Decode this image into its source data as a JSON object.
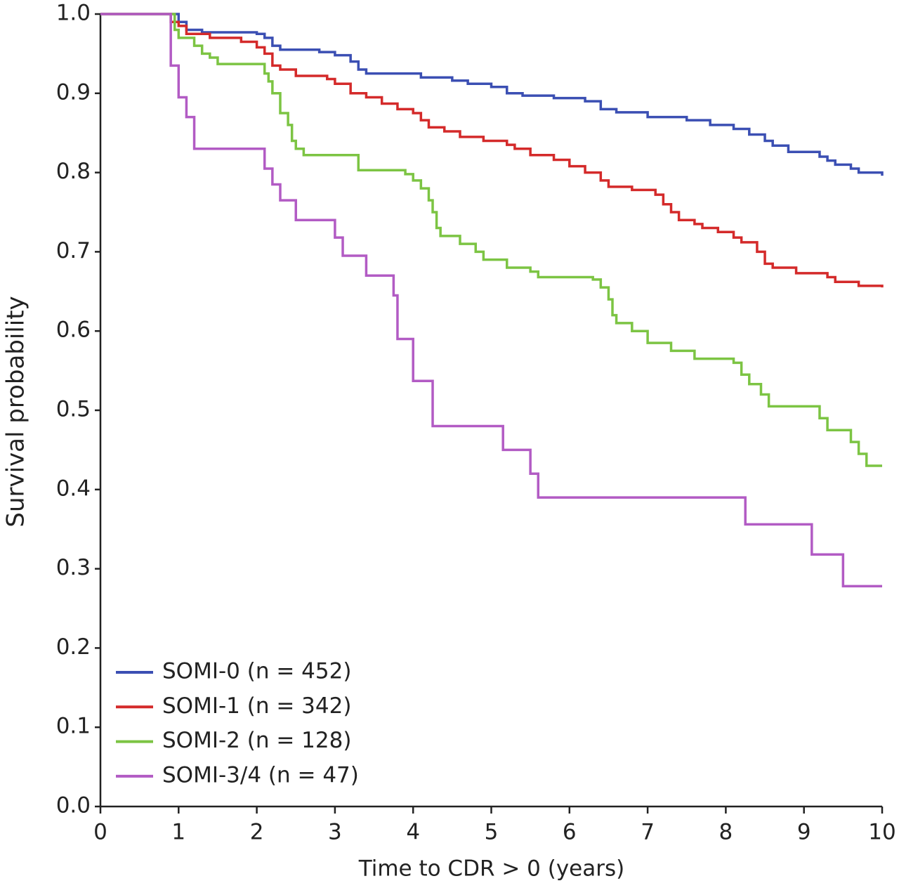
{
  "chart_data": {
    "type": "step",
    "xlabel": "Time to CDR > 0 (years)",
    "ylabel": "Survival probability",
    "xlim": [
      0,
      10
    ],
    "xticks": [
      0,
      1,
      2,
      3,
      4,
      5,
      6,
      7,
      8,
      9,
      10
    ],
    "ylim": [
      0,
      1
    ],
    "yticks": [
      {
        "value": 0,
        "label": "0.0"
      },
      {
        "value": 0.1,
        "label": "0.1"
      },
      {
        "value": 0.2,
        "label": "0.2"
      },
      {
        "value": 0.3,
        "label": "0.3"
      },
      {
        "value": 0.4,
        "label": "0.4"
      },
      {
        "value": 0.5,
        "label": "0.5"
      },
      {
        "value": 0.6,
        "label": "0.6"
      },
      {
        "value": 0.7,
        "label": "0.7"
      },
      {
        "value": 0.8,
        "label": "0.8"
      },
      {
        "value": 0.9,
        "label": "0.9"
      },
      {
        "value": 1,
        "label": "1.0"
      }
    ],
    "grid": false,
    "legend": "lower left",
    "series": [
      {
        "name": "SOMI-0 (n = 452)",
        "color": "#3b4fb3",
        "x": [
          0,
          1.0,
          1.1,
          1.3,
          2.0,
          2.1,
          2.2,
          2.3,
          2.8,
          3.0,
          3.2,
          3.3,
          3.4,
          4.1,
          4.5,
          4.7,
          5.0,
          5.2,
          5.4,
          5.8,
          6.2,
          6.4,
          6.6,
          7.0,
          7.5,
          7.8,
          8.1,
          8.3,
          8.5,
          8.6,
          8.8,
          9.2,
          9.3,
          9.4,
          9.6,
          9.7,
          10.0
        ],
        "values": [
          1.0,
          0.99,
          0.98,
          0.977,
          0.975,
          0.97,
          0.96,
          0.955,
          0.952,
          0.948,
          0.94,
          0.93,
          0.925,
          0.92,
          0.916,
          0.912,
          0.908,
          0.9,
          0.897,
          0.894,
          0.89,
          0.88,
          0.876,
          0.87,
          0.866,
          0.86,
          0.855,
          0.848,
          0.84,
          0.834,
          0.826,
          0.82,
          0.815,
          0.81,
          0.805,
          0.8,
          0.796
        ]
      },
      {
        "name": "SOMI-1 (n = 342)",
        "color": "#d42a2a",
        "x": [
          0,
          0.9,
          1.0,
          1.1,
          1.4,
          1.8,
          2.0,
          2.1,
          2.2,
          2.3,
          2.5,
          2.9,
          3.0,
          3.2,
          3.4,
          3.6,
          3.8,
          4.0,
          4.1,
          4.2,
          4.4,
          4.6,
          4.9,
          5.2,
          5.3,
          5.5,
          5.8,
          6.0,
          6.2,
          6.4,
          6.5,
          6.8,
          7.1,
          7.2,
          7.3,
          7.4,
          7.6,
          7.7,
          7.9,
          8.1,
          8.2,
          8.4,
          8.5,
          8.6,
          8.9,
          9.3,
          9.4,
          9.7,
          10.0
        ],
        "values": [
          1.0,
          0.99,
          0.985,
          0.975,
          0.97,
          0.965,
          0.958,
          0.95,
          0.935,
          0.93,
          0.922,
          0.918,
          0.912,
          0.9,
          0.895,
          0.887,
          0.88,
          0.875,
          0.866,
          0.857,
          0.852,
          0.845,
          0.84,
          0.835,
          0.83,
          0.822,
          0.816,
          0.808,
          0.8,
          0.79,
          0.782,
          0.778,
          0.772,
          0.76,
          0.75,
          0.74,
          0.735,
          0.73,
          0.725,
          0.718,
          0.712,
          0.7,
          0.685,
          0.68,
          0.673,
          0.668,
          0.662,
          0.657,
          0.655
        ]
      },
      {
        "name": "SOMI-2 (n = 128)",
        "color": "#7cc443",
        "x": [
          0,
          0.95,
          1.0,
          1.2,
          1.3,
          1.4,
          1.5,
          2.1,
          2.15,
          2.2,
          2.3,
          2.4,
          2.45,
          2.5,
          2.6,
          3.3,
          3.9,
          4.0,
          4.1,
          4.2,
          4.25,
          4.3,
          4.35,
          4.6,
          4.8,
          4.9,
          5.2,
          5.5,
          5.6,
          6.3,
          6.4,
          6.5,
          6.55,
          6.6,
          6.8,
          7.0,
          7.3,
          7.6,
          8.1,
          8.2,
          8.3,
          8.45,
          8.55,
          9.2,
          9.3,
          9.6,
          9.7,
          9.8,
          10.0
        ],
        "values": [
          1.0,
          0.98,
          0.97,
          0.96,
          0.95,
          0.945,
          0.937,
          0.925,
          0.915,
          0.9,
          0.875,
          0.86,
          0.84,
          0.83,
          0.822,
          0.803,
          0.798,
          0.79,
          0.78,
          0.765,
          0.75,
          0.73,
          0.72,
          0.71,
          0.7,
          0.69,
          0.68,
          0.675,
          0.668,
          0.665,
          0.655,
          0.64,
          0.62,
          0.61,
          0.6,
          0.585,
          0.575,
          0.565,
          0.56,
          0.545,
          0.533,
          0.52,
          0.505,
          0.49,
          0.475,
          0.46,
          0.445,
          0.43,
          0.43
        ]
      },
      {
        "name": "SOMI-3/4 (n = 47)",
        "color": "#b25bc4",
        "x": [
          0,
          0.9,
          1.0,
          1.1,
          1.2,
          2.1,
          2.2,
          2.3,
          2.5,
          3.0,
          3.1,
          3.4,
          3.75,
          3.8,
          4.0,
          4.25,
          5.15,
          5.5,
          5.6,
          8.25,
          9.1,
          9.5,
          10.0
        ],
        "values": [
          1.0,
          0.935,
          0.895,
          0.87,
          0.83,
          0.805,
          0.785,
          0.765,
          0.74,
          0.718,
          0.695,
          0.67,
          0.645,
          0.59,
          0.537,
          0.48,
          0.45,
          0.42,
          0.39,
          0.356,
          0.318,
          0.278,
          0.278
        ]
      }
    ]
  }
}
